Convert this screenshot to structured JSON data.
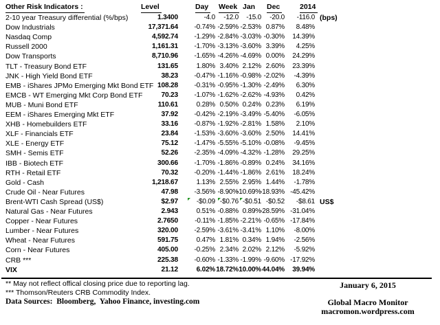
{
  "title": "Other Risk Indicators :",
  "columns": [
    {
      "key": "level",
      "label": "Level",
      "underline": true
    },
    {
      "key": "day",
      "label": "Day",
      "underline": true
    },
    {
      "key": "week",
      "label": "Week",
      "underline": true
    },
    {
      "key": "jan",
      "label": "Jan",
      "underline": false
    },
    {
      "key": "dec",
      "label": "Dec",
      "underline": true
    },
    {
      "key": "y2014",
      "label": "2014",
      "underline": true
    }
  ],
  "rows": [
    {
      "label": "2-10 year Treasury differential (%/bps)",
      "values": [
        "1.3400",
        "-4.0",
        "-12.0",
        "-15.0",
        "-20.0",
        "-116.0"
      ],
      "suffix": "(bps)"
    },
    {
      "label": "Dow Industrials",
      "values": [
        "17,371.64",
        "-0.74%",
        "-2.59%",
        "-2.53%",
        "0.87%",
        "8.48%"
      ]
    },
    {
      "label": "Nasdaq Comp",
      "values": [
        "4,592.74",
        "-1.29%",
        "-2.84%",
        "-3.03%",
        "-0.30%",
        "14.39%"
      ]
    },
    {
      "label": "Russell 2000",
      "values": [
        "1,161.31",
        "-1.70%",
        "-3.13%",
        "-3.60%",
        "3.39%",
        "4.25%"
      ]
    },
    {
      "label": "Dow Transports",
      "values": [
        "8,710.96",
        "-1.65%",
        "-4.26%",
        "-4.69%",
        "0.00%",
        "24.29%"
      ]
    },
    {
      "label": "TLT - Treasury Bond ETF",
      "values": [
        "131.65",
        "1.80%",
        "3.40%",
        "2.12%",
        "2.60%",
        "23.39%"
      ]
    },
    {
      "label": "JNK - High Yield Bond ETF",
      "values": [
        "38.23",
        "-0.47%",
        "-1.16%",
        "-0.98%",
        "-2.02%",
        "-4.39%"
      ]
    },
    {
      "label": "EMB - iShares JPMo Emerging Mkt Bond ETF",
      "values": [
        "108.28",
        "-0.31%",
        "-0.95%",
        "-1.30%",
        "-2.49%",
        "6.30%"
      ]
    },
    {
      "label": "EMCB - WT Emerging Mkt Corp Bond ETF",
      "values": [
        "70.23",
        "-1.07%",
        "-1.62%",
        "-2.62%",
        "-4.93%",
        "0.42%"
      ]
    },
    {
      "label": "MUB - Muni Bond ETF",
      "values": [
        "110.61",
        "0.28%",
        "0.50%",
        "0.24%",
        "0.23%",
        "6.19%"
      ]
    },
    {
      "label": "EEM - iShares Emerging Mkt ETF",
      "values": [
        "37.92",
        "-0.42%",
        "-2.19%",
        "-3.49%",
        "-5.40%",
        "-6.05%"
      ]
    },
    {
      "label": "XHB - Homebuilders ETF",
      "values": [
        "33.16",
        "-0.87%",
        "-1.92%",
        "-2.81%",
        "1.58%",
        "2.10%"
      ]
    },
    {
      "label": "XLF - Financials ETF",
      "values": [
        "23.84",
        "-1.53%",
        "-3.60%",
        "-3.60%",
        "2.50%",
        "14.41%"
      ]
    },
    {
      "label": "XLE - Energy ETF",
      "values": [
        "75.12",
        "-1.47%",
        "-5.55%",
        "-5.10%",
        "-0.08%",
        "-9.45%"
      ]
    },
    {
      "label": "SMH - Semis ETF",
      "values": [
        "52.26",
        "-2.35%",
        "-4.09%",
        "-4.32%",
        "-1.28%",
        "29.25%"
      ]
    },
    {
      "label": "IBB - Biotech ETF",
      "values": [
        "300.66",
        "-1.70%",
        "-1.86%",
        "-0.89%",
        "0.24%",
        "34.16%"
      ]
    },
    {
      "label": "RTH - Retail ETF",
      "values": [
        "70.32",
        "-0.20%",
        "-1.44%",
        "-1.86%",
        "2.61%",
        "18.24%"
      ]
    },
    {
      "label": "Gold - Cash",
      "values": [
        "1,218.67",
        "1.13%",
        "2.55%",
        "2.95%",
        "1.44%",
        "-1.78%"
      ]
    },
    {
      "label": "Crude Oil - Near Futures",
      "values": [
        "47.98",
        "-3.56%",
        "-8.90%",
        "-10.69%",
        "-18.93%",
        "-45.42%"
      ]
    },
    {
      "label": "Brent-WTI Cash Spread (US$)",
      "values": [
        "$2.97",
        "-$0.09",
        "-$0.76",
        "-$0.51",
        "-$0.52",
        "-$8.61"
      ],
      "suffix": "US$",
      "markers": [
        "day",
        "week",
        "jan"
      ]
    },
    {
      "label": "Natural Gas - Near Futures",
      "values": [
        "2.943",
        "0.51%",
        "-0.88%",
        "0.89%",
        "-28.59%",
        "-31.04%"
      ]
    },
    {
      "label": "Copper - Near Futures",
      "values": [
        "2.7650",
        "-0.11%",
        "-1.85%",
        "-2.21%",
        "-0.65%",
        "-17.84%"
      ]
    },
    {
      "label": "Lumber - Near Futures",
      "values": [
        "320.00",
        "-2.59%",
        "-3.61%",
        "-3.41%",
        "1.10%",
        "-8.00%"
      ]
    },
    {
      "label": "Wheat - Near Futures",
      "values": [
        "591.75",
        "0.47%",
        "1.81%",
        "0.34%",
        "1.94%",
        "-2.56%"
      ]
    },
    {
      "label": "Corn - Near Futures",
      "values": [
        "405.00",
        "-0.25%",
        "2.34%",
        "2.02%",
        "2.12%",
        "-5.92%"
      ]
    },
    {
      "label": "CRB ***",
      "values": [
        "225.38",
        "-0.60%",
        "-1.33%",
        "-1.99%",
        "-9.60%",
        "-17.92%"
      ]
    },
    {
      "label": "VIX",
      "values": [
        "21.12",
        "6.02%",
        "18.72%",
        "10.00%",
        "44.04%",
        "39.94%"
      ],
      "bold": true
    }
  ],
  "footer": {
    "footnote_reporting": "** May not reflect offical closing price due to reporting lag.",
    "footnote_crb": "*** Thomson/Reuters CRB Commodity Index.",
    "data_sources": "Data Sources:  Bloomberg,  Yahoo Finance, investing.com",
    "date": "January 6, 2015",
    "brand": "Global Macro Monitor",
    "site": "macromon.wordpress.com"
  },
  "colors": {
    "text": "#000000",
    "comment_marker_green": "#219421"
  }
}
